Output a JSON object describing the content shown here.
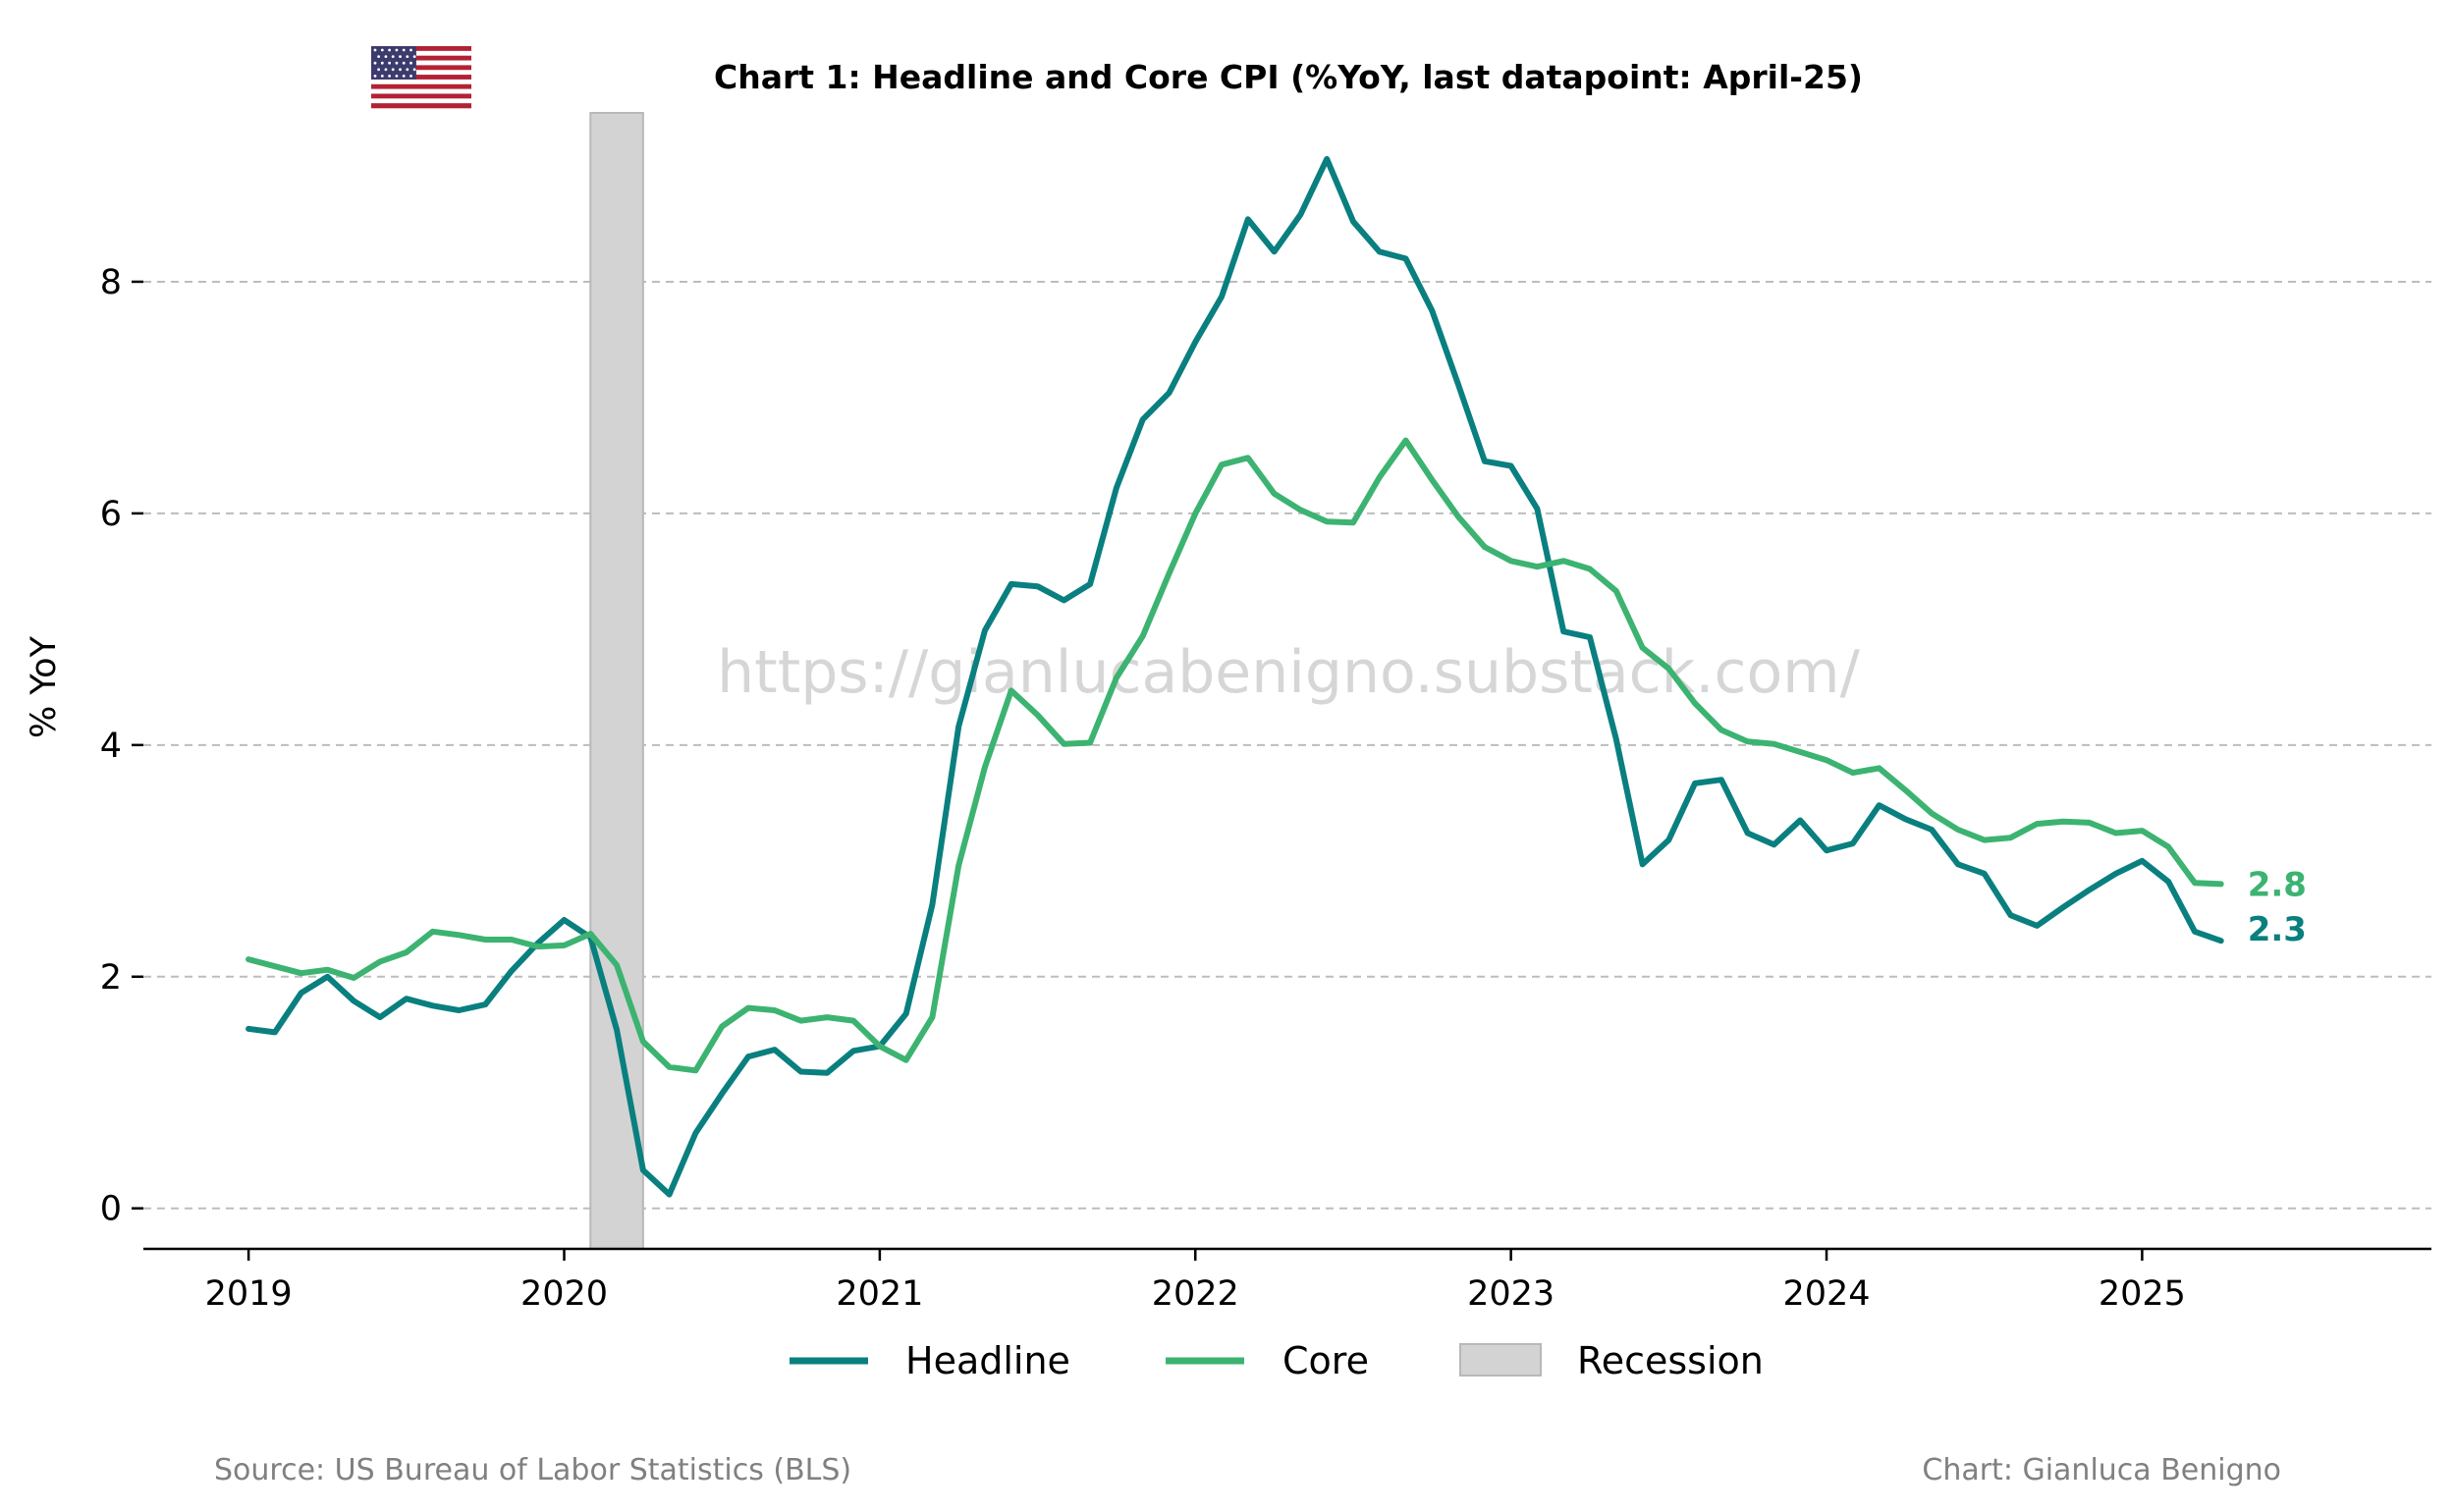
{
  "chart_data": {
    "type": "line",
    "title": "Chart 1: Headline and Core CPI (%YoY, last datapoint: April-25)",
    "ylabel": "% YoY",
    "xlabel": "",
    "ylim": [
      -0.35,
      9.5
    ],
    "xlim": [
      "2018-09",
      "2025-12"
    ],
    "yticks": [
      0,
      2,
      4,
      6,
      8
    ],
    "xticks": [
      "2019",
      "2020",
      "2021",
      "2022",
      "2023",
      "2024",
      "2025"
    ],
    "grid": "horizontal dashed",
    "legend_position": "bottom-center",
    "x_start": "2019-01",
    "x_frequency": "monthly",
    "series": [
      {
        "name": "Headline",
        "color": "#0a7f7f",
        "end_label": "2.3",
        "values": [
          1.55,
          1.52,
          1.86,
          2.0,
          1.79,
          1.65,
          1.81,
          1.75,
          1.71,
          1.76,
          2.05,
          2.29,
          2.49,
          2.34,
          1.54,
          0.33,
          0.12,
          0.65,
          0.99,
          1.31,
          1.37,
          1.18,
          1.17,
          1.36,
          1.4,
          1.68,
          2.62,
          4.16,
          4.99,
          5.39,
          5.37,
          5.25,
          5.39,
          6.22,
          6.81,
          7.04,
          7.48,
          7.87,
          8.54,
          8.26,
          8.58,
          9.06,
          8.52,
          8.26,
          8.2,
          7.75,
          7.11,
          6.45,
          6.41,
          6.04,
          4.98,
          4.93,
          4.05,
          2.97,
          3.18,
          3.67,
          3.7,
          3.24,
          3.14,
          3.35,
          3.09,
          3.15,
          3.48,
          3.36,
          3.27,
          2.97,
          2.89,
          2.53,
          2.44,
          2.6,
          2.75,
          2.89,
          3.0,
          2.82,
          2.39,
          2.31
        ]
      },
      {
        "name": "Core",
        "color": "#3cb371",
        "end_label": "2.8",
        "values": [
          2.15,
          2.09,
          2.03,
          2.06,
          1.99,
          2.13,
          2.21,
          2.39,
          2.36,
          2.32,
          2.32,
          2.26,
          2.27,
          2.37,
          2.1,
          1.44,
          1.22,
          1.19,
          1.57,
          1.73,
          1.71,
          1.62,
          1.65,
          1.62,
          1.4,
          1.28,
          1.65,
          2.96,
          3.81,
          4.47,
          4.26,
          4.01,
          4.02,
          4.58,
          4.94,
          5.48,
          6.0,
          6.42,
          6.48,
          6.17,
          6.03,
          5.93,
          5.92,
          6.31,
          6.63,
          6.29,
          5.97,
          5.71,
          5.59,
          5.54,
          5.59,
          5.52,
          5.33,
          4.84,
          4.66,
          4.36,
          4.13,
          4.03,
          4.01,
          3.94,
          3.87,
          3.76,
          3.8,
          3.61,
          3.41,
          3.27,
          3.18,
          3.2,
          3.32,
          3.34,
          3.33,
          3.24,
          3.26,
          3.12,
          2.81,
          2.8
        ]
      }
    ],
    "recession": {
      "name": "Recession",
      "start": "2020-02",
      "end": "2020-04",
      "color": "#d3d3d3"
    }
  },
  "watermark": "https://gianlucabenigno.substack.com/",
  "footer": {
    "source": "Source: US Bureau of Labor Statistics (BLS)",
    "credit": "Chart: Gianluca Benigno"
  },
  "flag": {
    "icon": "us-flag-icon",
    "colors": {
      "red": "#b22234",
      "blue": "#3c3b6e",
      "white": "#ffffff"
    }
  }
}
